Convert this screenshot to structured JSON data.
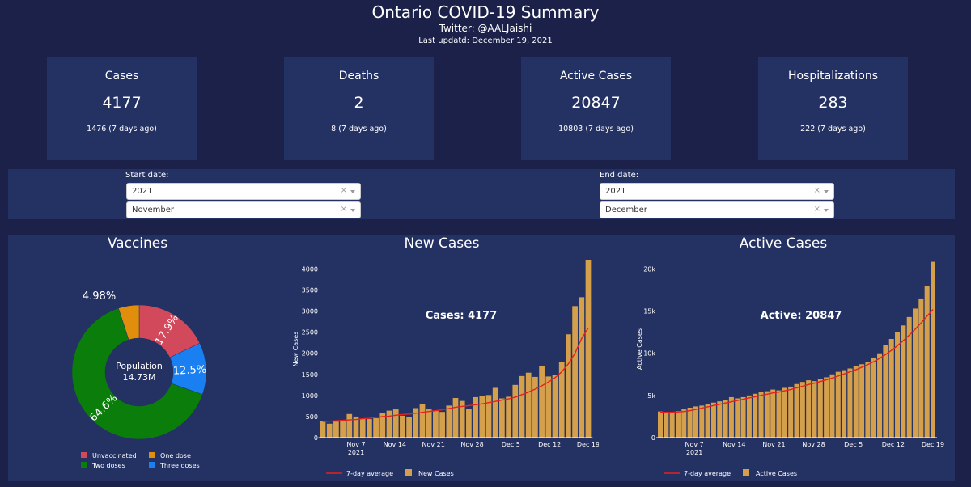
{
  "header": {
    "title": "Ontario COVID-19 Summary",
    "twitter": "Twitter: @AALJaishi",
    "updated": "Last updatd: December 19, 2021"
  },
  "cards": [
    {
      "title": "Cases",
      "value": "4177",
      "previous": "1476 (7 days ago)"
    },
    {
      "title": "Deaths",
      "value": "2",
      "previous": "8 (7 days ago)"
    },
    {
      "title": "Active Cases",
      "value": "20847",
      "previous": "10803 (7 days ago)"
    },
    {
      "title": "Hospitalizations",
      "value": "283",
      "previous": "222 (7 days ago)"
    }
  ],
  "filters": {
    "start_label": "Start date:",
    "start_year": "2021",
    "start_month": "November",
    "end_label": "End date:",
    "end_year": "2021",
    "end_month": "December",
    "clear_symbol": "×"
  },
  "colors": {
    "background": "#1b2149",
    "panel": "#243163",
    "bar": "#d4a04c",
    "average_line": "#e8201e",
    "unvaccinated": "#d1495b",
    "one_dose": "#e08e0b",
    "two_doses": "#0a7d0a",
    "three_doses": "#1a7ff0"
  },
  "chart_data": [
    {
      "type": "pie",
      "title": "Vaccines",
      "center_label": "Population",
      "center_value": "14.73M",
      "slices": [
        {
          "name": "Unvaccinated",
          "value": 17.9,
          "label": "17.9%",
          "color": "#d1495b"
        },
        {
          "name": "Three doses",
          "value": 12.5,
          "label": "12.5%",
          "color": "#1a7ff0"
        },
        {
          "name": "Two doses",
          "value": 64.6,
          "label": "64.6%",
          "color": "#0a7d0a"
        },
        {
          "name": "One dose",
          "value": 4.98,
          "label": "4.98%",
          "color": "#e08e0b"
        }
      ],
      "legend": [
        {
          "name": "Unvaccinated",
          "color": "#d1495b"
        },
        {
          "name": "One dose",
          "color": "#e08e0b"
        },
        {
          "name": "Two doses",
          "color": "#0a7d0a"
        },
        {
          "name": "Three doses",
          "color": "#1a7ff0"
        }
      ]
    },
    {
      "type": "bar",
      "title": "New Cases",
      "annotation": "Cases: 4177",
      "ylabel": "New Cases",
      "ylim": [
        0,
        4200
      ],
      "yticks": [
        0,
        500,
        1000,
        1500,
        2000,
        2500,
        3000,
        3500,
        4000
      ],
      "x_start": "2021-11-01",
      "x_end": "2021-12-19",
      "xticks": [
        {
          "date": "2021-11-07",
          "label": "Nov 7",
          "sublabel": "2021"
        },
        {
          "date": "2021-11-14",
          "label": "Nov 14"
        },
        {
          "date": "2021-11-21",
          "label": "Nov 21"
        },
        {
          "date": "2021-11-28",
          "label": "Nov 28"
        },
        {
          "date": "2021-12-05",
          "label": "Dec 5"
        },
        {
          "date": "2021-12-12",
          "label": "Dec 12"
        },
        {
          "date": "2021-12-19",
          "label": "Dec 19"
        }
      ],
      "series": [
        {
          "name": "New Cases",
          "kind": "bar",
          "values": [
            400,
            330,
            380,
            420,
            560,
            500,
            450,
            440,
            460,
            590,
            640,
            670,
            520,
            480,
            700,
            790,
            670,
            640,
            610,
            760,
            940,
            870,
            690,
            960,
            990,
            1010,
            1180,
            930,
            970,
            1250,
            1460,
            1540,
            1440,
            1700,
            1450,
            1480,
            1800,
            2450,
            3120,
            3330,
            4200
          ],
          "color": "#d4a04c"
        },
        {
          "name": "7-day average",
          "kind": "line",
          "values": [
            380,
            390,
            400,
            410,
            420,
            430,
            450,
            460,
            480,
            500,
            510,
            530,
            550,
            560,
            580,
            600,
            620,
            640,
            660,
            690,
            720,
            740,
            760,
            780,
            800,
            830,
            860,
            890,
            920,
            960,
            1020,
            1080,
            1150,
            1230,
            1320,
            1420,
            1560,
            1750,
            2000,
            2350,
            2600
          ],
          "color": "#e8201e"
        }
      ],
      "legend": [
        "7-day average",
        "New Cases"
      ]
    },
    {
      "type": "bar",
      "title": "Active Cases",
      "annotation": "Active: 20847",
      "ylabel": "Active Cases",
      "ylim": [
        0,
        21000
      ],
      "yticks": [
        0,
        5000,
        10000,
        15000,
        20000
      ],
      "ytick_labels": [
        "0",
        "5k",
        "10k",
        "15k",
        "20k"
      ],
      "x_start": "2021-11-01",
      "x_end": "2021-12-19",
      "xticks": [
        {
          "date": "2021-11-07",
          "label": "Nov 7",
          "sublabel": "2021"
        },
        {
          "date": "2021-11-14",
          "label": "Nov 14"
        },
        {
          "date": "2021-11-21",
          "label": "Nov 21"
        },
        {
          "date": "2021-11-28",
          "label": "Nov 28"
        },
        {
          "date": "2021-12-05",
          "label": "Dec 5"
        },
        {
          "date": "2021-12-12",
          "label": "Dec 12"
        },
        {
          "date": "2021-12-19",
          "label": "Dec 19"
        }
      ],
      "series": [
        {
          "name": "Active Cases",
          "kind": "bar",
          "values": [
            3100,
            3050,
            3050,
            3150,
            3350,
            3550,
            3700,
            3800,
            4000,
            4150,
            4300,
            4500,
            4800,
            4650,
            4800,
            5000,
            5200,
            5400,
            5500,
            5700,
            5600,
            5900,
            6050,
            6350,
            6600,
            6800,
            6700,
            7000,
            7150,
            7500,
            7800,
            8000,
            8200,
            8500,
            8700,
            9000,
            9500,
            10000,
            11000,
            11700,
            12500,
            13300,
            14300,
            15300,
            16500,
            18000,
            20847
          ],
          "color": "#d4a04c"
        },
        {
          "name": "7-day average",
          "kind": "line",
          "values": [
            3000,
            3000,
            3000,
            3050,
            3100,
            3200,
            3350,
            3500,
            3650,
            3800,
            3950,
            4100,
            4250,
            4400,
            4550,
            4700,
            4850,
            5000,
            5150,
            5300,
            5400,
            5550,
            5700,
            5900,
            6100,
            6300,
            6450,
            6650,
            6850,
            7050,
            7300,
            7550,
            7800,
            8050,
            8350,
            8650,
            9000,
            9400,
            9850,
            10350,
            10900,
            11500,
            12150,
            12850,
            13600,
            14400,
            15200
          ],
          "color": "#e8201e"
        }
      ],
      "legend": [
        "7-day average",
        "Active Cases"
      ]
    }
  ]
}
